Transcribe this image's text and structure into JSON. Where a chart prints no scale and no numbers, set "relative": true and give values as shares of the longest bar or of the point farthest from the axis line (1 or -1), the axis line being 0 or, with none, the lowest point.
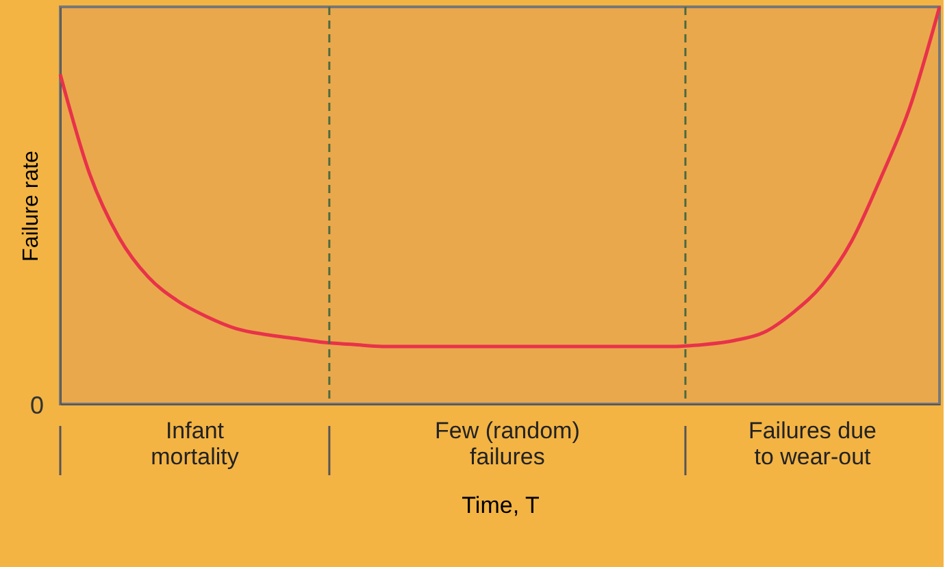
{
  "chart_data": {
    "type": "line",
    "relative": true,
    "ylabel": "Failure rate",
    "xlabel": "Time, T",
    "categories": [
      null,
      null,
      null,
      null,
      null,
      null,
      null,
      null,
      null,
      null,
      null,
      null,
      null,
      null,
      null,
      null,
      null,
      null,
      null,
      null,
      null,
      null,
      null,
      null,
      null,
      null,
      null,
      null,
      null,
      null,
      null
    ],
    "series": [
      {
        "color": "#e8324a",
        "values": [
          0.83,
          0.58,
          0.42,
          0.32,
          0.26,
          0.22,
          0.19,
          0.175,
          0.165,
          0.155,
          0.15,
          0.145,
          0.145,
          0.145,
          0.145,
          0.145,
          0.145,
          0.145,
          0.145,
          0.145,
          0.145,
          0.145,
          0.15,
          0.16,
          0.18,
          0.23,
          0.3,
          0.41,
          0.57,
          0.75,
          1.0
        ]
      }
    ],
    "annotations": [
      "0",
      "Infant mortality",
      "Few (random) failures",
      "Failures due to wear-out"
    ],
    "grid": false,
    "marker": "none",
    "line_style": "solid"
  }
}
